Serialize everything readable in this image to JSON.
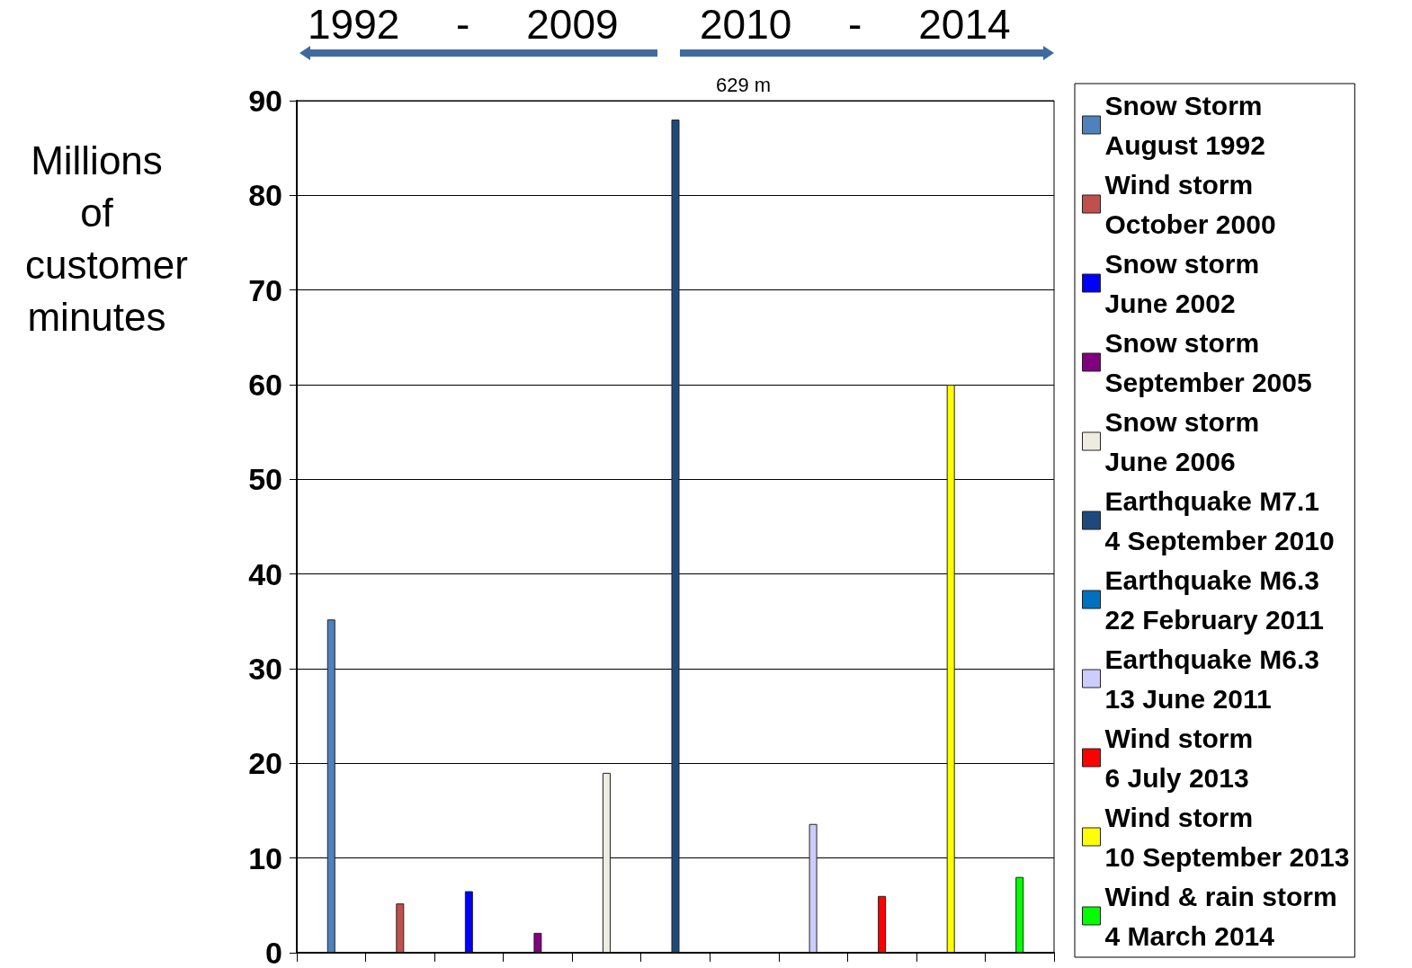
{
  "chart_data": {
    "type": "bar",
    "ylabel": "Millions of customer minutes",
    "annotations": [
      "1992 - 2009",
      "2010 - 2014",
      "629 m"
    ],
    "categories": [
      null,
      null,
      null,
      null,
      null,
      null,
      null,
      null,
      null,
      null,
      null
    ],
    "series": [
      {
        "name": "Snow Storm\nAugust 1992",
        "color": "#4f81bd",
        "values": [
          35.2,
          null,
          null,
          null,
          null,
          null,
          null,
          null,
          null,
          null,
          null
        ]
      },
      {
        "name": "Wind storm\nOctober 2000",
        "color": "#c0504d",
        "values": [
          null,
          5.2,
          null,
          null,
          null,
          null,
          null,
          null,
          null,
          null,
          null
        ]
      },
      {
        "name": "Snow storm\nJune 2002",
        "color": "#0000ff",
        "values": [
          null,
          null,
          6.5,
          null,
          null,
          null,
          null,
          null,
          null,
          null,
          null
        ]
      },
      {
        "name": "Snow storm\nSeptember 2005",
        "color": "#800080",
        "values": [
          null,
          null,
          null,
          2.1,
          null,
          null,
          null,
          null,
          null,
          null,
          null
        ]
      },
      {
        "name": "Snow storm\nJune 2006",
        "color": "#eeece1",
        "values": [
          null,
          null,
          null,
          null,
          19,
          null,
          null,
          null,
          null,
          null,
          null
        ]
      },
      {
        "name": "Earthquake M7.1\n4 September 2010",
        "color": "#1f497d",
        "values": [
          null,
          null,
          null,
          null,
          null,
          88,
          null,
          null,
          null,
          null,
          null
        ]
      },
      {
        "name": "Earthquake M6.3\n22 February 2011",
        "color": "#0070c0",
        "values": [
          null,
          null,
          null,
          null,
          null,
          null,
          null,
          null,
          null,
          null,
          null
        ]
      },
      {
        "name": "Earthquake M6.3\n13 June 2011",
        "color": "#ccccff",
        "values": [
          null,
          null,
          null,
          null,
          null,
          null,
          null,
          13.6,
          null,
          null,
          null
        ]
      },
      {
        "name": "Wind storm\n6 July 2013",
        "color": "#ff0000",
        "values": [
          null,
          null,
          null,
          null,
          null,
          null,
          null,
          null,
          6,
          null,
          null
        ]
      },
      {
        "name": "Wind storm\n10 September 2013",
        "color": "#ffff00",
        "values": [
          null,
          null,
          null,
          null,
          null,
          null,
          null,
          null,
          null,
          60,
          null
        ]
      },
      {
        "name": "Wind & rain storm\n4 March 2014",
        "color": "#00ff00",
        "values": [
          null,
          null,
          null,
          null,
          null,
          null,
          null,
          null,
          null,
          null,
          8
        ]
      }
    ],
    "ylim": [
      0,
      90
    ],
    "yticks": [
      0,
      10,
      20,
      30,
      40,
      50,
      60,
      70,
      80,
      90
    ],
    "grid": "y",
    "legend": "right",
    "tick_labels": "y"
  }
}
